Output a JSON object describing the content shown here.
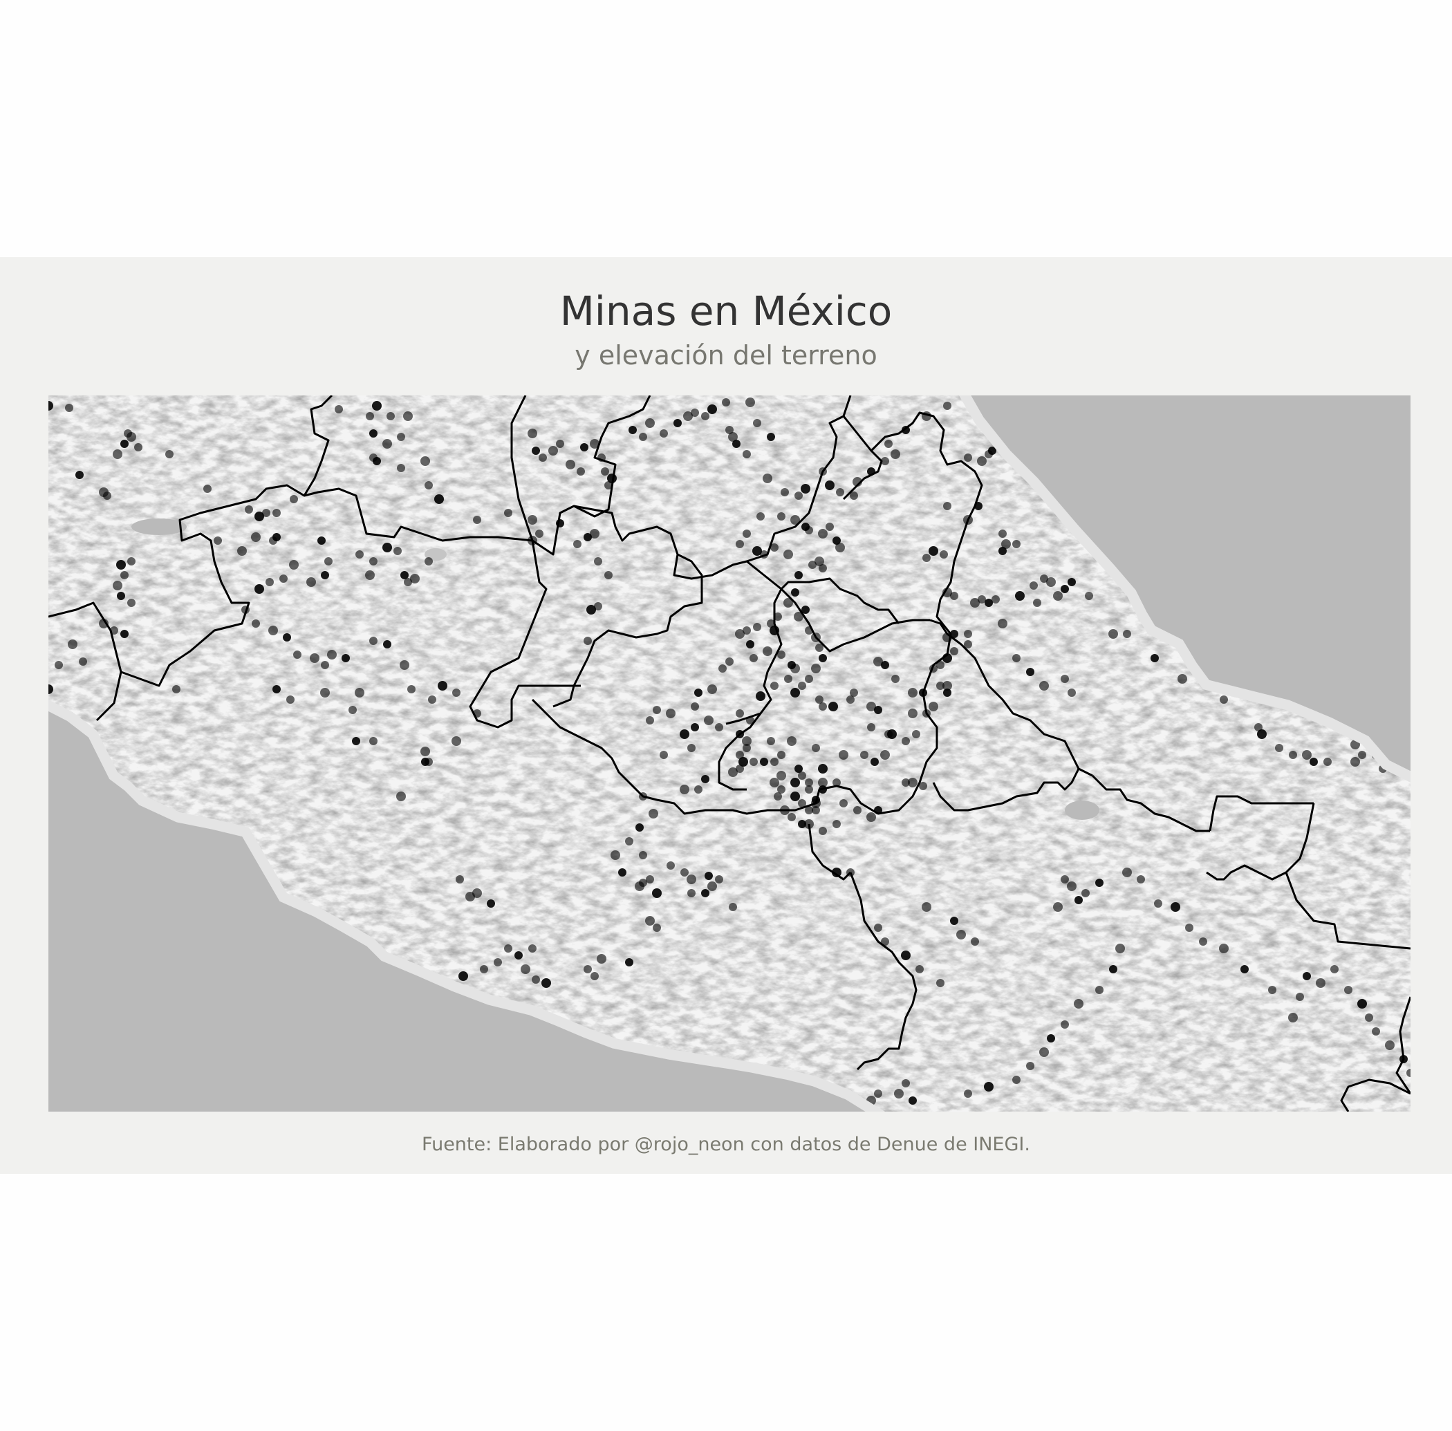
{
  "title": "Minas en México",
  "subtitle": "y elevación del terreno",
  "caption": "Fuente: Elaborado por @rojo_neon con datos de Denue de INEGI.",
  "colors": {
    "background": "#fefefe",
    "panel": "#f1f1ef",
    "water": "#bababa",
    "land": "#f4f4f4",
    "relief": "#9a9a9a",
    "borders": "#000000",
    "mine_points": "#000000"
  },
  "layers": {
    "basemap": "hillshade-elevation",
    "boundaries": "state-borders",
    "points": "mines"
  }
}
